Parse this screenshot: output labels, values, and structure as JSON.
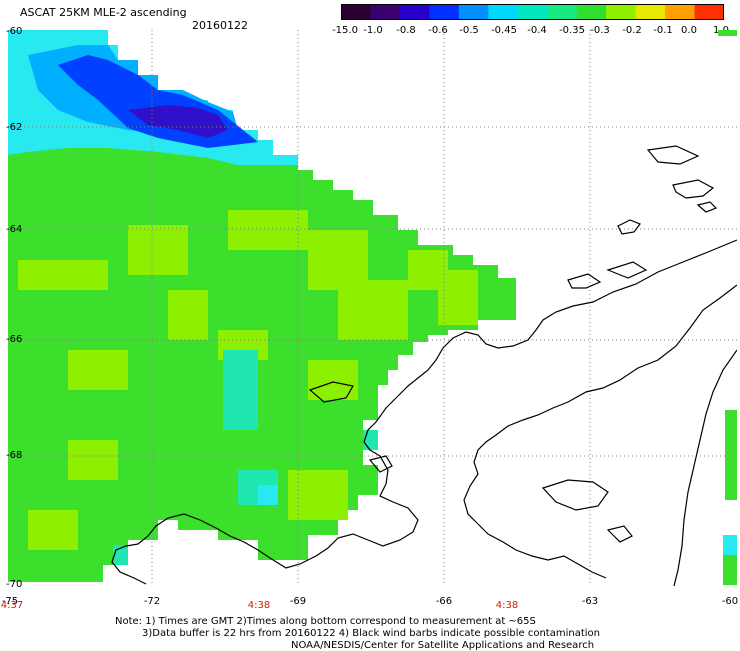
{
  "header": {
    "title": "ASCAT 25KM MLE-2 ascending",
    "date": "20160122"
  },
  "colorbar": {
    "tick_labels": [
      "-15.0",
      "-1.0",
      "-0.8",
      "-0.6",
      "-0.5",
      "-0.45",
      "-0.4",
      "-0.35",
      "-0.3",
      "-0.2",
      "-0.1",
      "0.0",
      "1.0"
    ],
    "colors": [
      "#2a0030",
      "#3a0070",
      "#2600c8",
      "#0030ff",
      "#0090ff",
      "#00d8ff",
      "#00e8c0",
      "#18e880",
      "#30e030",
      "#90f000",
      "#e8e800",
      "#ffa000",
      "#ff3000"
    ]
  },
  "map": {
    "lat_labels": [
      "-60",
      "-62",
      "-64",
      "-66",
      "-68",
      "-70"
    ],
    "lon_labels": [
      "-75",
      "-72",
      "-69",
      "-66",
      "-63",
      "-60"
    ],
    "time_labels": [
      "4:37",
      "4:38",
      "4:38"
    ],
    "colors": {
      "coast": "#000000",
      "grid": "#808080",
      "green": "#3ce02c",
      "lime": "#8cf000",
      "teal": "#20e6b0",
      "cyan": "#28e8f0",
      "sky": "#00b0ff",
      "blue": "#0040ff",
      "indigo": "#3010c8",
      "time_label": "#cc2200"
    }
  },
  "footer": {
    "line1": "Note: 1) Times are GMT 2)Times along bottom correspond to measurement at ~65S",
    "line2": "3)Data buffer is 22 hrs from 20160122 4) Black wind barbs indicate possible contamination",
    "line3": "NOAA/NESDIS/Center for Satellite Applications and Research"
  }
}
